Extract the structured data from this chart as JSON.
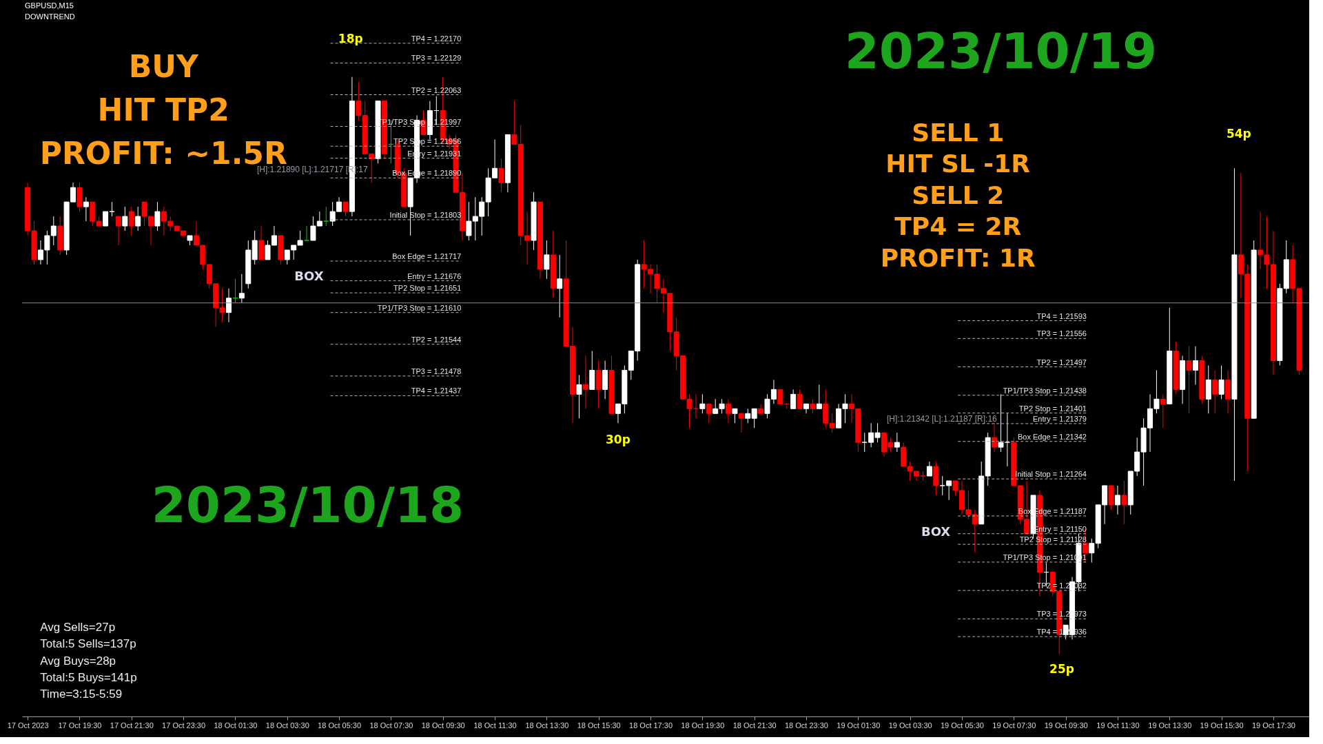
{
  "chart_data": {
    "type": "candlestick",
    "title": "GBPUSD,M15",
    "subtitle": "DOWNTREND",
    "colors": [
      "#ff0000",
      "#ff0000",
      "#ffffff",
      "#ffffff",
      "#ffffff",
      "#ff0000",
      "#ffffff",
      "#ffffff",
      "#ff0000",
      "#ffffff",
      "#ff0000",
      "#ff0000",
      "#ffffff",
      "#ffffff",
      "#ff0000",
      "#ffffff",
      "#ff0000",
      "#ffffff",
      "#ff0000",
      "#ff0000",
      "#ffffff",
      "#ff0000",
      "#ff0000",
      "#ff0000",
      "#ff0000",
      "#ffffff",
      "#ff0000",
      "#ff0000",
      "#ff0000",
      "#ff0000",
      "#ff0000",
      "#ffffff",
      "#00c800",
      "#ffffff",
      "#ffffff",
      "#ffffff",
      "#ff0000",
      "#ffffff",
      "#ffffff",
      "#ff0000",
      "#ffffff",
      "#ffffff",
      "#ffffff",
      "#00c800",
      "#ffffff",
      "#ffffff",
      "#00c800",
      "#ffffff",
      "#ffffff",
      "#ff0000",
      "#ffffff",
      "#ff0000",
      "#ff0000",
      "#ff0000",
      "#ffffff",
      "#ff0000",
      "#00c800",
      "#ff0000",
      "#ff0000",
      "#ffffff",
      "#ffffff",
      "#ff0000",
      "#ffffff",
      "#ffffff",
      "#ff0000",
      "#ff0000",
      "#ff0000",
      "#ff0000",
      "#ffffff",
      "#ffffff",
      "#ffffff",
      "#ffffff",
      "#ffffff",
      "#ff0000",
      "#ffffff",
      "#ff0000",
      "#ff0000",
      "#ff0000",
      "#ffffff",
      "#ff0000",
      "#ffffff",
      "#ff0000",
      "#ffffff",
      "#ff0000",
      "#ff0000",
      "#ffffff",
      "#ff0000",
      "#ffffff",
      "#ff0000",
      "#ffffff",
      "#ff0000",
      "#ffffff",
      "#ffffff",
      "#ffffff",
      "#ffffff",
      "#ff0000",
      "#ff0000",
      "#ff0000",
      "#ff0000",
      "#ff0000",
      "#ff0000",
      "#ff0000",
      "#ff0000",
      "#ff0000",
      "#ffffff",
      "#ff0000",
      "#ffffff",
      "#ffffff",
      "#ff0000",
      "#ffffff",
      "#ff0000",
      "#ffffff",
      "#ffffff",
      "#ff0000",
      "#ffffff",
      "#ffffff",
      "#ff0000",
      "#ff0000",
      "#ffffff",
      "#ff0000",
      "#ffffff",
      "#ff0000",
      "#ffffff",
      "#ff0000",
      "#ff0000",
      "#ffffff",
      "#ffffff",
      "#ff0000",
      "#ff0000",
      "#ffffff",
      "#ffffff",
      "#ffffff",
      "#ff0000",
      "#ff0000",
      "#ffffff",
      "#ff0000",
      "#ff0000",
      "#ff0000",
      "#ff0000",
      "#ffffff",
      "#ff0000",
      "#ffffff",
      "#ffffff",
      "#ff0000",
      "#ff0000",
      "#ff0000",
      "#ff0000",
      "#ffffff",
      "#ffffff",
      "#ff0000",
      "#ffffff",
      "#ffffff",
      "#ff0000",
      "#ff0000",
      "#ff0000",
      "#ffffff",
      "#ff0000",
      "#ffffff",
      "#ff0000",
      "#ff0000",
      "#ffffff",
      "#ffffff",
      "#ffffff",
      "#ff0000",
      "#ffffff",
      "#ffffff",
      "#ffffff",
      "#ff0000",
      "#ffffff",
      "#ff0000",
      "#ffffff",
      "#ffffff",
      "#ffffff",
      "#ffffff",
      "#ffffff",
      "#ff0000",
      "#ffffff",
      "#ff0000",
      "#ffffff",
      "#ff0000",
      "#ffffff",
      "#ff0000",
      "#ffffff",
      "#ff0000",
      "#ffffff",
      "#ff0000",
      "#ffffff",
      "#ff0000",
      "#ff0000",
      "#ffffff",
      "#ff0000",
      "#ff0000",
      "#ff0000",
      "#ffffff",
      "#ffffff",
      "#ff0000",
      "#ff0000"
    ],
    "x": [
      "2023-10-17T17:30",
      "2023-10-17T17:45",
      "2023-10-17T18:00",
      "2023-10-17T18:15",
      "2023-10-17T18:30",
      "2023-10-17T18:45",
      "2023-10-17T19:00",
      "2023-10-17T19:15",
      "2023-10-17T19:30",
      "2023-10-17T19:45",
      "2023-10-17T20:00",
      "2023-10-17T20:15",
      "2023-10-17T20:30",
      "2023-10-17T20:45",
      "2023-10-17T21:00",
      "2023-10-17T21:15",
      "2023-10-17T21:30",
      "2023-10-17T21:45",
      "2023-10-17T22:00",
      "2023-10-17T22:15",
      "2023-10-17T22:30",
      "2023-10-17T22:45",
      "2023-10-17T23:00",
      "2023-10-17T23:15",
      "2023-10-17T23:30",
      "2023-10-17T23:45",
      "2023-10-18T00:00",
      "2023-10-18T00:15",
      "2023-10-18T00:30",
      "2023-10-18T00:45",
      "2023-10-18T01:00",
      "2023-10-18T01:15",
      "2023-10-18T01:30",
      "2023-10-18T01:45",
      "2023-10-18T02:00",
      "2023-10-18T02:15",
      "2023-10-18T02:30",
      "2023-10-18T02:45",
      "2023-10-18T03:00",
      "2023-10-18T03:15",
      "2023-10-18T03:30",
      "2023-10-18T03:45",
      "2023-10-18T04:00",
      "2023-10-18T04:15",
      "2023-10-18T04:30",
      "2023-10-18T04:45",
      "2023-10-18T05:00",
      "2023-10-18T05:15",
      "2023-10-18T05:30",
      "2023-10-18T05:45",
      "2023-10-18T06:00",
      "2023-10-18T06:15",
      "2023-10-18T06:30",
      "2023-10-18T06:45",
      "2023-10-18T07:00",
      "2023-10-18T07:15",
      "2023-10-18T07:30",
      "2023-10-18T07:45",
      "2023-10-18T08:00",
      "2023-10-18T08:15",
      "2023-10-18T08:30",
      "2023-10-18T08:45",
      "2023-10-18T09:00",
      "2023-10-18T09:15",
      "2023-10-18T09:30",
      "2023-10-18T09:45",
      "2023-10-18T10:00",
      "2023-10-18T10:15",
      "2023-10-18T10:30",
      "2023-10-18T10:45",
      "2023-10-18T11:00",
      "2023-10-18T11:15",
      "2023-10-18T11:30",
      "2023-10-18T11:45",
      "2023-10-18T12:00",
      "2023-10-18T12:15",
      "2023-10-18T12:30",
      "2023-10-18T12:45",
      "2023-10-18T13:00",
      "2023-10-18T13:15",
      "2023-10-18T13:30",
      "2023-10-18T13:45",
      "2023-10-18T14:00",
      "2023-10-18T14:15",
      "2023-10-18T14:30",
      "2023-10-18T14:45",
      "2023-10-18T15:00",
      "2023-10-18T15:15",
      "2023-10-18T15:30",
      "2023-10-18T15:45",
      "2023-10-18T16:00",
      "2023-10-18T16:15",
      "2023-10-18T16:30",
      "2023-10-18T16:45",
      "2023-10-18T17:00",
      "2023-10-18T17:15",
      "2023-10-18T17:30",
      "2023-10-18T17:45",
      "2023-10-18T18:00",
      "2023-10-18T18:15",
      "2023-10-18T18:30",
      "2023-10-18T18:45",
      "2023-10-18T19:00",
      "2023-10-18T19:15",
      "2023-10-18T19:30",
      "2023-10-18T19:45",
      "2023-10-18T20:00",
      "2023-10-18T20:15",
      "2023-10-18T20:30",
      "2023-10-18T20:45",
      "2023-10-18T21:00",
      "2023-10-18T21:15",
      "2023-10-18T21:30",
      "2023-10-18T21:45",
      "2023-10-18T22:00",
      "2023-10-18T22:15",
      "2023-10-18T22:30",
      "2023-10-18T22:45",
      "2023-10-18T23:00",
      "2023-10-18T23:15",
      "2023-10-18T23:30",
      "2023-10-18T23:45",
      "2023-10-19T00:00",
      "2023-10-19T00:15",
      "2023-10-19T00:30",
      "2023-10-19T00:45",
      "2023-10-19T01:00",
      "2023-10-19T01:15",
      "2023-10-19T01:30",
      "2023-10-19T01:45",
      "2023-10-19T02:00",
      "2023-10-19T02:15",
      "2023-10-19T02:30",
      "2023-10-19T02:45",
      "2023-10-19T03:00",
      "2023-10-19T03:15",
      "2023-10-19T03:30",
      "2023-10-19T03:45",
      "2023-10-19T04:00",
      "2023-10-19T04:15",
      "2023-10-19T04:30",
      "2023-10-19T04:45",
      "2023-10-19T05:00",
      "2023-10-19T05:15",
      "2023-10-19T05:30",
      "2023-10-19T05:45",
      "2023-10-19T06:00",
      "2023-10-19T06:15",
      "2023-10-19T06:30",
      "2023-10-19T06:45",
      "2023-10-19T07:00",
      "2023-10-19T07:15",
      "2023-10-19T07:30",
      "2023-10-19T07:45",
      "2023-10-19T08:00",
      "2023-10-19T08:15",
      "2023-10-19T08:30",
      "2023-10-19T08:45",
      "2023-10-19T09:00",
      "2023-10-19T09:15",
      "2023-10-19T09:30",
      "2023-10-19T09:45",
      "2023-10-19T10:00",
      "2023-10-19T10:15",
      "2023-10-19T10:30",
      "2023-10-19T10:45",
      "2023-10-19T11:00",
      "2023-10-19T11:15",
      "2023-10-19T11:30",
      "2023-10-19T11:45",
      "2023-10-19T12:00",
      "2023-10-19T12:15",
      "2023-10-19T12:30",
      "2023-10-19T12:45",
      "2023-10-19T13:00",
      "2023-10-19T13:15",
      "2023-10-19T13:30",
      "2023-10-19T13:45",
      "2023-10-19T14:00",
      "2023-10-19T14:15",
      "2023-10-19T14:30",
      "2023-10-19T14:45",
      "2023-10-19T15:00",
      "2023-10-19T15:15",
      "2023-10-19T15:30",
      "2023-10-19T15:45",
      "2023-10-19T16:00",
      "2023-10-19T16:15",
      "2023-10-19T16:30",
      "2023-10-19T16:45",
      "2023-10-19T17:00",
      "2023-10-19T17:15",
      "2023-10-19T17:30",
      "2023-10-19T17:45",
      "2023-10-19T18:00",
      "2023-10-19T18:15",
      "2023-10-19T18:30"
    ],
    "ohlc": [
      [
        1.2187,
        1.2188,
        1.2177,
        1.2178
      ],
      [
        1.2178,
        1.218,
        1.2171,
        1.2172
      ],
      [
        1.2172,
        1.2176,
        1.2171,
        1.2174
      ],
      [
        1.2174,
        1.2178,
        1.2171,
        1.2177
      ],
      [
        1.2177,
        1.2181,
        1.2175,
        1.2179
      ],
      [
        1.2179,
        1.2181,
        1.2173,
        1.2174
      ],
      [
        1.2174,
        1.2184,
        1.2173,
        1.2184
      ],
      [
        1.2184,
        1.2188,
        1.2184,
        1.2187
      ],
      [
        1.2187,
        1.2188,
        1.2182,
        1.2183
      ],
      [
        1.2183,
        1.2185,
        1.218,
        1.2184
      ],
      [
        1.2184,
        1.2184,
        1.2179,
        1.218
      ],
      [
        1.218,
        1.2181,
        1.2179,
        1.2179
      ],
      [
        1.2179,
        1.2182,
        1.2179,
        1.2182
      ],
      [
        1.2182,
        1.2184,
        1.2181,
        1.2182
      ],
      [
        1.2181,
        1.2181,
        1.2175,
        1.2179
      ],
      [
        1.2179,
        1.2183,
        1.2178,
        1.2181
      ],
      [
        1.2182,
        1.2183,
        1.2177,
        1.2179
      ],
      [
        1.2179,
        1.2183,
        1.2178,
        1.2181
      ],
      [
        1.2184,
        1.2184,
        1.2179,
        1.2181
      ],
      [
        1.2181,
        1.2181,
        1.2175,
        1.2179
      ],
      [
        1.2179,
        1.2184,
        1.2178,
        1.2182
      ],
      [
        1.2182,
        1.2183,
        1.2177,
        1.218
      ],
      [
        1.218,
        1.2181,
        1.2178,
        1.2179
      ],
      [
        1.2179,
        1.2179,
        1.2178,
        1.2178
      ],
      [
        1.2178,
        1.2178,
        1.2177,
        1.2177
      ],
      [
        1.2176,
        1.2177,
        1.2175,
        1.2177
      ],
      [
        1.2177,
        1.218,
        1.2175,
        1.2175
      ],
      [
        1.2175,
        1.2175,
        1.217,
        1.2171
      ],
      [
        1.2171,
        1.2171,
        1.2166,
        1.2167
      ],
      [
        1.2167,
        1.2167,
        1.2158,
        1.2162
      ],
      [
        1.2162,
        1.2166,
        1.2159,
        1.2161
      ],
      [
        1.2161,
        1.2166,
        1.2159,
        1.2164
      ],
      [
        1.2164,
        1.2168,
        1.2163,
        1.2164
      ],
      [
        1.2164,
        1.2169,
        1.2163,
        1.2165
      ],
      [
        1.2167,
        1.2176,
        1.2166,
        1.2174
      ],
      [
        1.2172,
        1.2178,
        1.2171,
        1.2176
      ],
      [
        1.2176,
        1.2179,
        1.2172,
        1.2172
      ],
      [
        1.2172,
        1.2176,
        1.2172,
        1.2175
      ],
      [
        1.2175,
        1.2179,
        1.2175,
        1.2177
      ],
      [
        1.2177,
        1.2177,
        1.2171,
        1.2172
      ],
      [
        1.2172,
        1.2174,
        1.2171,
        1.2174
      ],
      [
        1.2174,
        1.2175,
        1.2172,
        1.2175
      ],
      [
        1.2175,
        1.2178,
        1.2175,
        1.2176
      ],
      [
        1.2176,
        1.2179,
        1.2176,
        1.2176
      ],
      [
        1.2176,
        1.2181,
        1.2176,
        1.2179
      ],
      [
        1.2179,
        1.2182,
        1.2179,
        1.218
      ],
      [
        1.218,
        1.2183,
        1.2179,
        1.218
      ],
      [
        1.218,
        1.2184,
        1.2179,
        1.2182
      ],
      [
        1.2182,
        1.2185,
        1.2182,
        1.2184
      ],
      [
        1.2184,
        1.2184,
        1.2181,
        1.2182
      ],
      [
        1.2182,
        1.221,
        1.2181,
        1.2205
      ],
      [
        1.2205,
        1.2209,
        1.2201,
        1.2202
      ],
      [
        1.2202,
        1.2205,
        1.2194,
        1.2194
      ],
      [
        1.2194,
        1.2194,
        1.2188,
        1.2193
      ],
      [
        1.2193,
        1.2205,
        1.2192,
        1.2205
      ],
      [
        1.2205,
        1.2205,
        1.2193,
        1.2194
      ],
      [
        1.2196,
        1.2201,
        1.2192,
        1.2196
      ],
      [
        1.2196,
        1.2197,
        1.2189,
        1.219
      ],
      [
        1.219,
        1.2191,
        1.2183,
        1.2183
      ],
      [
        1.2183,
        1.2189,
        1.2177,
        1.2189
      ],
      [
        1.2189,
        1.2202,
        1.2188,
        1.2201
      ],
      [
        1.2201,
        1.2203,
        1.2198,
        1.2198
      ],
      [
        1.2198,
        1.2205,
        1.2197,
        1.2203
      ],
      [
        1.2203,
        1.2206,
        1.22,
        1.2203
      ],
      [
        1.2203,
        1.221,
        1.2196,
        1.2197
      ],
      [
        1.2197,
        1.2198,
        1.2195,
        1.2196
      ],
      [
        1.2197,
        1.2198,
        1.2186,
        1.2186
      ],
      [
        1.2186,
        1.219,
        1.2176,
        1.2178
      ],
      [
        1.2177,
        1.2184,
        1.2176,
        1.218
      ],
      [
        1.218,
        1.2185,
        1.2176,
        1.2181
      ],
      [
        1.2181,
        1.2185,
        1.2177,
        1.2184
      ],
      [
        1.2184,
        1.2191,
        1.2181,
        1.2189
      ],
      [
        1.2189,
        1.2197,
        1.2189,
        1.2191
      ],
      [
        1.2191,
        1.2193,
        1.2186,
        1.2188
      ],
      [
        1.2188,
        1.2198,
        1.2186,
        1.2198
      ],
      [
        1.2198,
        1.2205,
        1.2196,
        1.2196
      ],
      [
        1.2196,
        1.22,
        1.2175,
        1.2177
      ],
      [
        1.2177,
        1.2182,
        1.2171,
        1.2176
      ],
      [
        1.2176,
        1.2186,
        1.2174,
        1.2184
      ],
      [
        1.2184,
        1.2184,
        1.2168,
        1.217
      ],
      [
        1.217,
        1.2176,
        1.2168,
        1.2173
      ],
      [
        1.2173,
        1.2178,
        1.2164,
        1.2166
      ],
      [
        1.2166,
        1.2173,
        1.216,
        1.2168
      ],
      [
        1.2168,
        1.2176,
        1.2154,
        1.2154
      ],
      [
        1.2154,
        1.2158,
        1.2138,
        1.2144
      ],
      [
        1.2144,
        1.2148,
        1.2139,
        1.2146
      ],
      [
        1.2146,
        1.2152,
        1.2141,
        1.2145
      ],
      [
        1.2145,
        1.2153,
        1.2145,
        1.2149
      ],
      [
        1.2149,
        1.2151,
        1.2141,
        1.2145
      ],
      [
        1.2145,
        1.2151,
        1.2143,
        1.2149
      ],
      [
        1.2149,
        1.2152,
        1.214,
        1.214
      ],
      [
        1.214,
        1.2142,
        1.2138,
        1.2142
      ],
      [
        1.2142,
        1.215,
        1.214,
        1.2149
      ],
      [
        1.2149,
        1.2153,
        1.2147,
        1.2153
      ],
      [
        1.2153,
        1.2172,
        1.2151,
        1.2171
      ],
      [
        1.2171,
        1.2176,
        1.2166,
        1.217
      ],
      [
        1.217,
        1.2171,
        1.2165,
        1.2169
      ],
      [
        1.2169,
        1.2171,
        1.2163,
        1.2166
      ],
      [
        1.2166,
        1.2168,
        1.2161,
        1.2165
      ],
      [
        1.2165,
        1.2165,
        1.2153,
        1.2157
      ],
      [
        1.2157,
        1.216,
        1.2149,
        1.2152
      ],
      [
        1.2152,
        1.2152,
        1.2143,
        1.2143
      ],
      [
        1.2143,
        1.2144,
        1.2137,
        1.2141
      ],
      [
        1.2141,
        1.2144,
        1.2139,
        1.2141
      ],
      [
        1.2141,
        1.2144,
        1.214,
        1.2142
      ],
      [
        1.2142,
        1.2142,
        1.2138,
        1.214
      ],
      [
        1.214,
        1.2143,
        1.214,
        1.2141
      ],
      [
        1.2141,
        1.2143,
        1.214,
        1.2142
      ],
      [
        1.2142,
        1.2143,
        1.2138,
        1.214
      ],
      [
        1.214,
        1.2141,
        1.2138,
        1.2141
      ],
      [
        1.214,
        1.214,
        1.2136,
        1.2139
      ],
      [
        1.2139,
        1.2141,
        1.2138,
        1.214
      ],
      [
        1.2139,
        1.2141,
        1.2137,
        1.2141
      ],
      [
        1.2141,
        1.2142,
        1.214,
        1.214
      ],
      [
        1.214,
        1.2144,
        1.2139,
        1.2143
      ],
      [
        1.2143,
        1.2147,
        1.2142,
        1.2145
      ],
      [
        1.2145,
        1.2145,
        1.2142,
        1.2142
      ],
      [
        1.2142,
        1.2142,
        1.2141,
        1.2142
      ],
      [
        1.2141,
        1.2145,
        1.2141,
        1.2144
      ],
      [
        1.2144,
        1.2145,
        1.2141,
        1.2141
      ],
      [
        1.2141,
        1.2142,
        1.214,
        1.2142
      ],
      [
        1.2142,
        1.2143,
        1.214,
        1.2141
      ],
      [
        1.2141,
        1.2146,
        1.2141,
        1.2142
      ],
      [
        1.2142,
        1.2145,
        1.2137,
        1.2138
      ],
      [
        1.2138,
        1.214,
        1.2136,
        1.2137
      ],
      [
        1.2137,
        1.2142,
        1.2137,
        1.2141
      ],
      [
        1.2141,
        1.2144,
        1.2138,
        1.2142
      ],
      [
        1.2142,
        1.2144,
        1.2138,
        1.2141
      ],
      [
        1.2141,
        1.2141,
        1.2132,
        1.2134
      ],
      [
        1.2134,
        1.2136,
        1.2132,
        1.2134
      ],
      [
        1.2134,
        1.2138,
        1.2133,
        1.2136
      ],
      [
        1.2135,
        1.2138,
        1.2134,
        1.2136
      ],
      [
        1.2136,
        1.2136,
        1.2131,
        1.2132
      ],
      [
        1.2134,
        1.2135,
        1.2132,
        1.2133
      ],
      [
        1.2133,
        1.2136,
        1.2132,
        1.2134
      ],
      [
        1.2133,
        1.2134,
        1.2129,
        1.2129
      ],
      [
        1.2129,
        1.213,
        1.2126,
        1.2128
      ],
      [
        1.2128,
        1.2128,
        1.2126,
        1.2127
      ],
      [
        1.2127,
        1.2128,
        1.2126,
        1.2127
      ],
      [
        1.2127,
        1.213,
        1.2127,
        1.2129
      ],
      [
        1.2129,
        1.213,
        1.2123,
        1.2125
      ],
      [
        1.2125,
        1.2127,
        1.2123,
        1.2125
      ],
      [
        1.2125,
        1.2126,
        1.2122,
        1.2126
      ],
      [
        1.2126,
        1.2126,
        1.2123,
        1.2124
      ],
      [
        1.2124,
        1.2126,
        1.2119,
        1.212
      ],
      [
        1.212,
        1.2124,
        1.2118,
        1.2119
      ],
      [
        1.2119,
        1.212,
        1.2111,
        1.2117
      ],
      [
        1.2117,
        1.213,
        1.2117,
        1.2127
      ],
      [
        1.2127,
        1.2136,
        1.2125,
        1.2135
      ],
      [
        1.2135,
        1.2138,
        1.2132,
        1.2133
      ],
      [
        1.2133,
        1.2144,
        1.2132,
        1.2134
      ],
      [
        1.2134,
        1.214,
        1.2129,
        1.2134
      ],
      [
        1.2134,
        1.2135,
        1.2125,
        1.2125
      ],
      [
        1.2125,
        1.2125,
        1.2117,
        1.2118
      ],
      [
        1.2118,
        1.2126,
        1.2115,
        1.2115
      ],
      [
        1.2115,
        1.2123,
        1.2114,
        1.2123
      ],
      [
        1.2123,
        1.2124,
        1.2102,
        1.2107
      ],
      [
        1.2107,
        1.2109,
        1.2104,
        1.2107
      ],
      [
        1.2107,
        1.2107,
        1.2102,
        1.2103
      ],
      [
        1.2103,
        1.2103,
        1.209,
        1.2094
      ],
      [
        1.2094,
        1.2096,
        1.2093,
        1.2096
      ],
      [
        1.2094,
        1.2106,
        1.2093,
        1.2105
      ],
      [
        1.2105,
        1.2115,
        1.2103,
        1.2113
      ],
      [
        1.2113,
        1.2116,
        1.2109,
        1.2111
      ],
      [
        1.2111,
        1.2114,
        1.2109,
        1.2113
      ],
      [
        1.2113,
        1.2121,
        1.2112,
        1.2121
      ],
      [
        1.2121,
        1.2125,
        1.2117,
        1.2125
      ],
      [
        1.2125,
        1.2125,
        1.212,
        1.2121
      ],
      [
        1.2121,
        1.2125,
        1.2119,
        1.2123
      ],
      [
        1.2123,
        1.2126,
        1.2117,
        1.2121
      ],
      [
        1.2121,
        1.2128,
        1.2119,
        1.2128
      ],
      [
        1.2128,
        1.2135,
        1.2127,
        1.2132
      ],
      [
        1.2132,
        1.2139,
        1.2125,
        1.2137
      ],
      [
        1.2137,
        1.2144,
        1.2132,
        1.2141
      ],
      [
        1.2141,
        1.2149,
        1.214,
        1.2143
      ],
      [
        1.2143,
        1.2144,
        1.2137,
        1.2142
      ],
      [
        1.2142,
        1.2162,
        1.2142,
        1.2153
      ],
      [
        1.2153,
        1.2155,
        1.2144,
        1.2145
      ],
      [
        1.2145,
        1.2152,
        1.2142,
        1.2151
      ],
      [
        1.2151,
        1.2154,
        1.214,
        1.2149
      ],
      [
        1.2149,
        1.2154,
        1.2146,
        1.2151
      ],
      [
        1.2151,
        1.2152,
        1.2142,
        1.2143
      ],
      [
        1.2143,
        1.215,
        1.214,
        1.2147
      ],
      [
        1.2147,
        1.2149,
        1.214,
        1.2144
      ],
      [
        1.2144,
        1.215,
        1.2143,
        1.2147
      ],
      [
        1.2147,
        1.2149,
        1.214,
        1.2143
      ],
      [
        1.2143,
        1.2191,
        1.2126,
        1.2173
      ],
      [
        1.2173,
        1.219,
        1.2164,
        1.2169
      ],
      [
        1.2169,
        1.2171,
        1.2128,
        1.2139
      ],
      [
        1.2139,
        1.2176,
        1.2139,
        1.2174
      ],
      [
        1.2174,
        1.2182,
        1.217,
        1.2173
      ],
      [
        1.2173,
        1.2181,
        1.2166,
        1.2171
      ],
      [
        1.2171,
        1.2178,
        1.2148,
        1.2151
      ],
      [
        1.2151,
        1.2167,
        1.215,
        1.2166
      ],
      [
        1.2166,
        1.2176,
        1.2165,
        1.2172
      ],
      [
        1.2172,
        1.2175,
        1.2163,
        1.2166
      ],
      [
        1.2166,
        1.2166,
        1.2148,
        1.2149
      ]
    ],
    "xlim": [
      "2023-10-17T17:25",
      "2023-10-19T18:45"
    ],
    "ylim": [
      1.2077,
      1.2226
    ],
    "tick_labels": "x",
    "xticks": [
      {
        "value": "2023-10-17T17:30",
        "label": "17 Oct 2023"
      },
      {
        "value": "2023-10-17T19:30",
        "label": "17 Oct 19:30"
      },
      {
        "value": "2023-10-17T21:30",
        "label": "17 Oct 21:30"
      },
      {
        "value": "2023-10-17T23:30",
        "label": "17 Oct 23:30"
      },
      {
        "value": "2023-10-18T01:30",
        "label": "18 Oct 01:30"
      },
      {
        "value": "2023-10-18T03:30",
        "label": "18 Oct 03:30"
      },
      {
        "value": "2023-10-18T05:30",
        "label": "18 Oct 05:30"
      },
      {
        "value": "2023-10-18T07:30",
        "label": "18 Oct 07:30"
      },
      {
        "value": "2023-10-18T09:30",
        "label": "18 Oct 09:30"
      },
      {
        "value": "2023-10-18T11:30",
        "label": "18 Oct 11:30"
      },
      {
        "value": "2023-10-18T13:30",
        "label": "18 Oct 13:30"
      },
      {
        "value": "2023-10-18T15:30",
        "label": "18 Oct 15:30"
      },
      {
        "value": "2023-10-18T17:30",
        "label": "18 Oct 17:30"
      },
      {
        "value": "2023-10-18T19:30",
        "label": "18 Oct 19:30"
      },
      {
        "value": "2023-10-18T21:30",
        "label": "18 Oct 21:30"
      },
      {
        "value": "2023-10-18T23:30",
        "label": "18 Oct 23:30"
      },
      {
        "value": "2023-10-19T01:30",
        "label": "19 Oct 01:30"
      },
      {
        "value": "2023-10-19T03:30",
        "label": "19 Oct 03:30"
      },
      {
        "value": "2023-10-19T05:30",
        "label": "19 Oct 05:30"
      },
      {
        "value": "2023-10-19T07:30",
        "label": "19 Oct 07:30"
      },
      {
        "value": "2023-10-19T09:30",
        "label": "19 Oct 09:30"
      },
      {
        "value": "2023-10-19T11:30",
        "label": "19 Oct 11:30"
      },
      {
        "value": "2023-10-19T13:30",
        "label": "19 Oct 13:30"
      },
      {
        "value": "2023-10-19T15:30",
        "label": "19 Oct 15:30"
      },
      {
        "value": "2023-10-19T17:30",
        "label": "19 Oct 17:30"
      }
    ],
    "ref_lines": [
      {
        "axis": "y",
        "value": 1.2163,
        "color": "#8c8c8c",
        "line_style": "solid"
      },
      {
        "axis": "y",
        "value": 1.2217,
        "label": "TP4 = 1.22170",
        "color": "#b4b4b4",
        "line_style": "dashed"
      },
      {
        "axis": "y",
        "value": 1.22129,
        "label": "TP3 = 1.22129",
        "color": "#b4b4b4",
        "line_style": "dashed"
      },
      {
        "axis": "y",
        "value": 1.22063,
        "label": "TP2 = 1.22063",
        "color": "#b4b4b4",
        "line_style": "dashed"
      },
      {
        "axis": "y",
        "value": 1.21997,
        "label": "TP1/TP3 Stop = 1.21997",
        "color": "#b4b4b4",
        "line_style": "dashed"
      },
      {
        "axis": "y",
        "value": 1.21956,
        "label": "TP2 Stop = 1.21956",
        "color": "#b4b4b4",
        "line_style": "dashed"
      },
      {
        "axis": "y",
        "value": 1.21931,
        "label": "Entry = 1.21931",
        "color": "#b4b4b4",
        "line_style": "dashed"
      },
      {
        "axis": "y",
        "value": 1.2189,
        "label": "Box Edge = 1.21890",
        "color": "#b4b4b4",
        "line_style": "dashed"
      },
      {
        "axis": "y",
        "value": 1.21803,
        "label": "Initial Stop = 1.21803",
        "color": "#b4b4b4",
        "line_style": "dashed"
      },
      {
        "axis": "y",
        "value": 1.21717,
        "label": "Box Edge = 1.21717",
        "color": "#b4b4b4",
        "line_style": "dashed"
      },
      {
        "axis": "y",
        "value": 1.21676,
        "label": "Entry = 1.21676",
        "color": "#b4b4b4",
        "line_style": "dashed"
      },
      {
        "axis": "y",
        "value": 1.21651,
        "label": "TP2 Stop = 1.21651",
        "color": "#b4b4b4",
        "line_style": "dashed"
      },
      {
        "axis": "y",
        "value": 1.2161,
        "label": "TP1/TP3 Stop = 1.21610",
        "color": "#b4b4b4",
        "line_style": "dashed"
      },
      {
        "axis": "y",
        "value": 1.21544,
        "label": "TP2 = 1.21544",
        "color": "#b4b4b4",
        "line_style": "dashed"
      },
      {
        "axis": "y",
        "value": 1.21478,
        "label": "TP3 = 1.21478",
        "color": "#b4b4b4",
        "line_style": "dashed"
      },
      {
        "axis": "y",
        "value": 1.21437,
        "label": "TP4 = 1.21437",
        "color": "#b4b4b4",
        "line_style": "dashed"
      },
      {
        "axis": "y",
        "value": 1.21593,
        "label": "TP4 = 1.21593",
        "color": "#b4b4b4",
        "line_style": "dashed"
      },
      {
        "axis": "y",
        "value": 1.21556,
        "label": "TP3 = 1.21556",
        "color": "#b4b4b4",
        "line_style": "dashed"
      },
      {
        "axis": "y",
        "value": 1.21497,
        "label": "TP2 = 1.21497",
        "color": "#b4b4b4",
        "line_style": "dashed"
      },
      {
        "axis": "y",
        "value": 1.21438,
        "label": "TP1/TP3 Stop = 1.21438",
        "color": "#b4b4b4",
        "line_style": "dashed"
      },
      {
        "axis": "y",
        "value": 1.21401,
        "label": "TP2 Stop = 1.21401",
        "color": "#b4b4b4",
        "line_style": "dashed"
      },
      {
        "axis": "y",
        "value": 1.21379,
        "label": "Entry = 1.21379",
        "color": "#b4b4b4",
        "line_style": "dashed"
      },
      {
        "axis": "y",
        "value": 1.21342,
        "label": "Box Edge = 1.21342",
        "color": "#b4b4b4",
        "line_style": "dashed"
      },
      {
        "axis": "y",
        "value": 1.21264,
        "label": "Initial Stop = 1.21264",
        "color": "#b4b4b4",
        "line_style": "dashed"
      },
      {
        "axis": "y",
        "value": 1.21187,
        "label": "Box Edge = 1.21187",
        "color": "#b4b4b4",
        "line_style": "dashed"
      },
      {
        "axis": "y",
        "value": 1.2115,
        "label": "Entry = 1.21150",
        "color": "#b4b4b4",
        "line_style": "dashed"
      },
      {
        "axis": "y",
        "value": 1.21128,
        "label": "TP2 Stop = 1.21128",
        "color": "#b4b4b4",
        "line_style": "dashed"
      },
      {
        "axis": "y",
        "value": 1.21091,
        "label": "TP1/TP3 Stop = 1.21091",
        "color": "#b4b4b4",
        "line_style": "dashed"
      },
      {
        "axis": "y",
        "value": 1.21032,
        "label": "TP2 = 1.21032",
        "color": "#b4b4b4",
        "line_style": "dashed"
      },
      {
        "axis": "y",
        "value": 1.20973,
        "label": "TP3 = 1.20973",
        "color": "#b4b4b4",
        "line_style": "dashed"
      },
      {
        "axis": "y",
        "value": 1.20936,
        "label": "TP4 = 1.20936",
        "color": "#b4b4b4",
        "line_style": "dashed"
      }
    ],
    "annotations": [
      "BUY\nHIT TP2\nPROFIT: ~1.5R",
      "2023/10/19",
      "SELL 1\nHIT SL -1R\n\nSELL 2\nTP4 = 2R\nPROFIT: 1R",
      "2023/10/18",
      "Avg Sells=27p\nTotal:5 Sells=137p\nAvg Buys=28p\nTotal:5 Buys=141p\nTime=3:15-5:59",
      "18p",
      "30p",
      "25p",
      "54p",
      "[H]:1.21890 [L]:1.21717 [R]:17",
      "BOX",
      "[H]:1.21342 [L]:1.21187 [R]:16",
      "BOX"
    ]
  }
}
